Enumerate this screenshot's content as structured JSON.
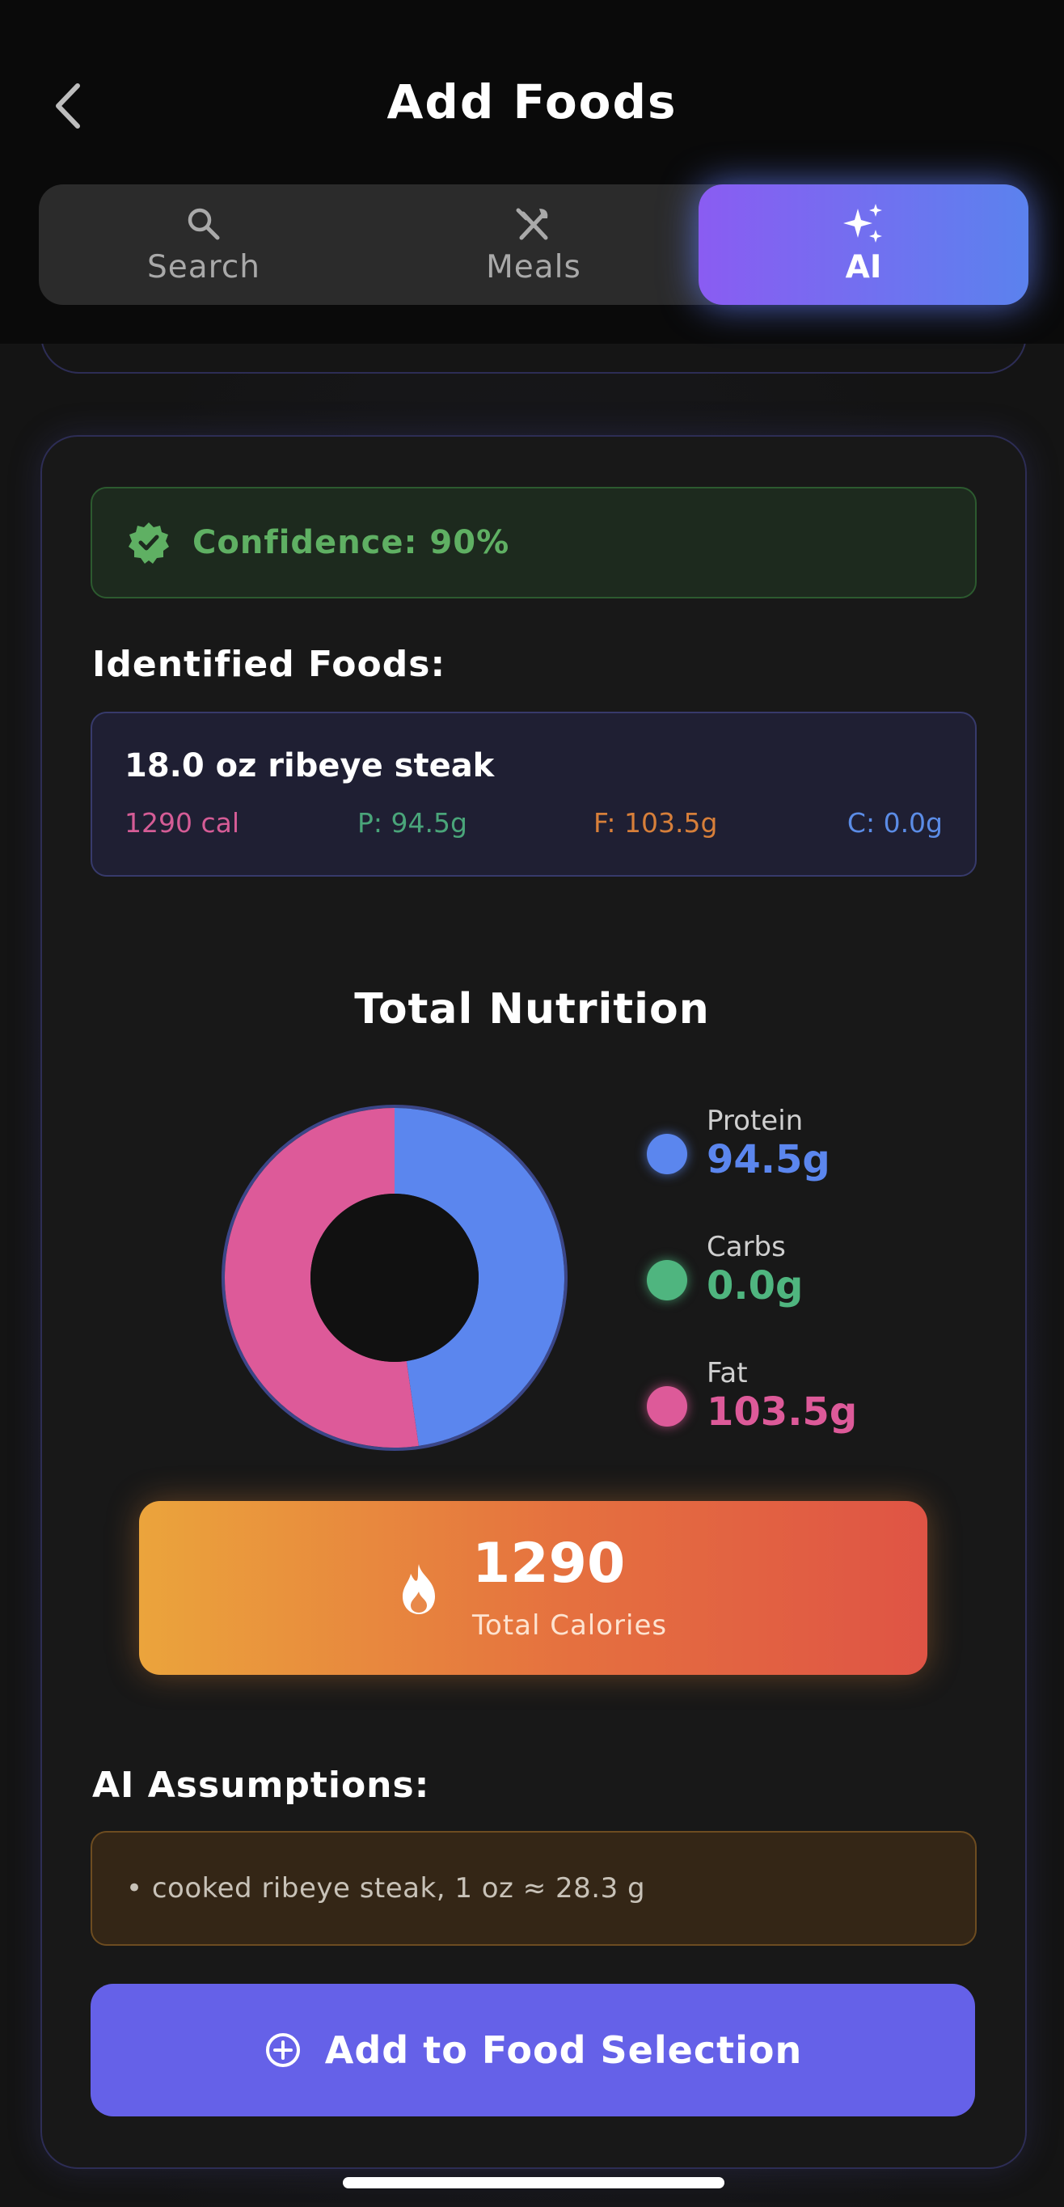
{
  "header": {
    "title": "Add Foods",
    "back_icon": "chevron-left-icon"
  },
  "tabs": [
    {
      "label": "Search",
      "icon": "search-icon",
      "active": false
    },
    {
      "label": "Meals",
      "icon": "fork-knife-icon",
      "active": false
    },
    {
      "label": "AI",
      "icon": "sparkles-icon",
      "active": true
    }
  ],
  "confidence": {
    "text": "Confidence: 90%",
    "value": 90,
    "icon": "verified-badge-icon",
    "color": "#5fb063"
  },
  "identified": {
    "heading": "Identified Foods:",
    "items": [
      {
        "name": "18.0 oz ribeye steak",
        "calories": "1290 cal",
        "protein": "P: 94.5g",
        "fat": "F: 103.5g",
        "carbs": "C: 0.0g"
      }
    ]
  },
  "nutrition": {
    "title": "Total Nutrition",
    "legend": [
      {
        "label": "Protein",
        "value": "94.5g",
        "color": "#5b86ee"
      },
      {
        "label": "Carbs",
        "value": "0.0g",
        "color": "#4fb57f"
      },
      {
        "label": "Fat",
        "value": "103.5g",
        "color": "#dd5a99"
      }
    ],
    "calories": {
      "value": "1290",
      "label": "Total Calories",
      "icon": "flame-icon"
    }
  },
  "chart_data": {
    "type": "pie",
    "categories": [
      "Protein",
      "Carbs",
      "Fat"
    ],
    "values": [
      94.5,
      0.0,
      103.5
    ],
    "colors": [
      "#5b86ee",
      "#4fb57f",
      "#dd5a99"
    ],
    "title": "Total Nutrition"
  },
  "assumptions": {
    "heading": "AI Assumptions:",
    "items": [
      "• cooked ribeye steak, 1 oz ≈ 28.3 g"
    ]
  },
  "add_button": {
    "label": "Add to Food Selection",
    "icon": "plus-circle-icon"
  }
}
